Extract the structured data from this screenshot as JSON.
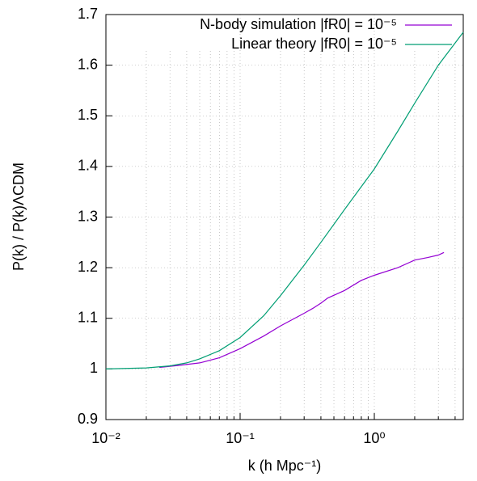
{
  "chart_data": {
    "type": "line",
    "xlabel": "k  (h Mpc⁻¹)",
    "ylabel": "P(k)  / P(k)ΛCDM",
    "xscale": "log",
    "xlim": [
      0.01,
      4.6
    ],
    "ylim": [
      0.9,
      1.7
    ],
    "xticks": [
      {
        "value": 0.01,
        "label": "10⁻²"
      },
      {
        "value": 0.1,
        "label": "10⁻¹"
      },
      {
        "value": 1,
        "label": "10⁰"
      }
    ],
    "xminorticks": [
      0.02,
      0.03,
      0.04,
      0.05,
      0.06,
      0.07,
      0.08,
      0.09,
      0.2,
      0.3,
      0.4,
      0.5,
      0.6,
      0.7,
      0.8,
      0.9,
      2,
      3,
      4
    ],
    "yticks": [
      {
        "value": 0.9,
        "label": "0.9"
      },
      1,
      1.1,
      1.2,
      1.3,
      1.4,
      1.5,
      1.6,
      1.7
    ],
    "grid": true,
    "legend": "top-right",
    "series": [
      {
        "name": "N-body simulation |fR0| = 10⁻⁵",
        "color": "#9400d3",
        "x": [
          0.025,
          0.035,
          0.05,
          0.07,
          0.1,
          0.15,
          0.2,
          0.3,
          0.35,
          0.4,
          0.45,
          0.6,
          0.8,
          1.0,
          1.5,
          2.0,
          2.5,
          3.0,
          3.3
        ],
        "values": [
          1.003,
          1.007,
          1.012,
          1.022,
          1.04,
          1.065,
          1.085,
          1.11,
          1.12,
          1.13,
          1.14,
          1.155,
          1.175,
          1.185,
          1.2,
          1.215,
          1.22,
          1.225,
          1.23
        ]
      },
      {
        "name": "Linear theory |fR0| = 10⁻⁵",
        "color": "#009e73",
        "x": [
          0.01,
          0.02,
          0.03,
          0.04,
          0.05,
          0.07,
          0.1,
          0.15,
          0.2,
          0.3,
          0.4,
          0.6,
          0.8,
          1.0,
          1.5,
          2.0,
          3.0,
          4.6
        ],
        "values": [
          1.0,
          1.002,
          1.006,
          1.012,
          1.02,
          1.036,
          1.062,
          1.105,
          1.145,
          1.205,
          1.25,
          1.315,
          1.36,
          1.395,
          1.47,
          1.525,
          1.6,
          1.665
        ]
      }
    ]
  }
}
